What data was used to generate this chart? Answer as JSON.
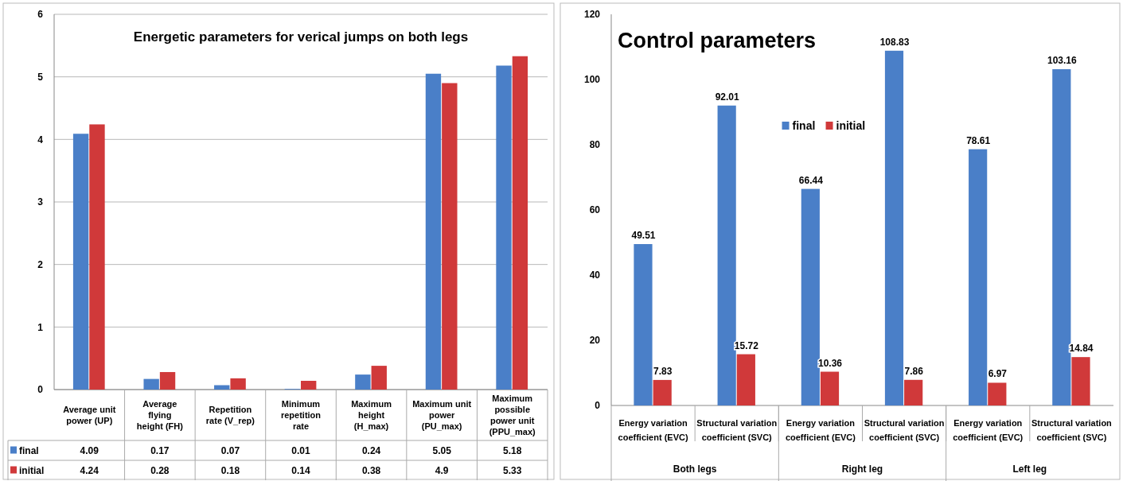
{
  "chart_data": [
    {
      "type": "bar",
      "title": "Energetic parameters for verical jumps on both legs",
      "categories": [
        "Average unit power (UP)",
        "Average flying height (FH)",
        "Repetition rate (V_rep)",
        "Minimum repetition rate",
        "Maximum height (H_max)",
        "Maximum unit power (PU_max)",
        "Maximum possible power unit (PPU_max)"
      ],
      "series": [
        {
          "name": "final",
          "color": "#4a7fc8",
          "values": [
            4.09,
            0.17,
            0.07,
            0.01,
            0.24,
            5.05,
            5.18
          ]
        },
        {
          "name": "initial",
          "color": "#d0393a",
          "values": [
            4.24,
            0.28,
            0.18,
            0.14,
            0.38,
            4.9,
            5.33
          ]
        }
      ],
      "ylim": [
        0,
        6
      ],
      "yticks": [
        0,
        1,
        2,
        3,
        4,
        5,
        6
      ],
      "grid": "y",
      "legend": "bottom",
      "data_labels": true
    },
    {
      "type": "bar",
      "title": "Control parameters",
      "categories": [
        "Energy variation coefficient (EVC)",
        "Structural variation coefficient (SVC)",
        "Energy variation coefficient (EVC)",
        "Structural variation coefficient (SVC)",
        "Energy variation coefficient (EVC)",
        "Structural variation coefficient (SVC)"
      ],
      "series": [
        {
          "name": "final",
          "color": "#4a7fc8",
          "values": [
            49.51,
            92.01,
            66.44,
            108.83,
            78.61,
            103.16
          ]
        },
        {
          "name": "initial",
          "color": "#d0393a",
          "values": [
            7.83,
            15.72,
            10.36,
            7.86,
            6.97,
            14.84
          ]
        }
      ],
      "annotations": [
        "Both legs",
        "Right leg",
        "Left leg"
      ],
      "ylim": [
        0,
        120
      ],
      "yticks": [
        0,
        20,
        40,
        60,
        80,
        100,
        120
      ],
      "grid": false,
      "legend": "top",
      "data_labels": true
    }
  ]
}
